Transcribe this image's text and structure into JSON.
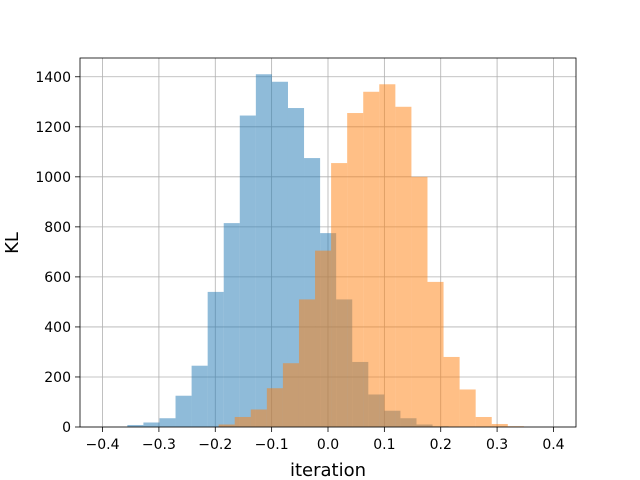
{
  "chart_data": {
    "type": "histogram",
    "title": "",
    "xlabel": "iteration",
    "ylabel": "KL",
    "xlim": [
      -0.44,
      0.44
    ],
    "ylim": [
      0,
      1475
    ],
    "grid": true,
    "x_ticks": [
      -0.4,
      -0.3,
      -0.2,
      -0.1,
      0.0,
      0.1,
      0.2,
      0.3,
      0.4
    ],
    "x_tick_labels": [
      "−0.4",
      "−0.3",
      "−0.2",
      "−0.1",
      "0.0",
      "0.1",
      "0.2",
      "0.3",
      "0.4"
    ],
    "y_ticks": [
      0,
      200,
      400,
      600,
      800,
      1000,
      1200,
      1400
    ],
    "y_tick_labels": [
      "0",
      "200",
      "400",
      "600",
      "800",
      "1000",
      "1200",
      "1400"
    ],
    "series": [
      {
        "color": "#1f77b4",
        "opacity": 0.5,
        "bin_edges": [
          -0.356,
          -0.3275,
          -0.299,
          -0.2705,
          -0.242,
          -0.2135,
          -0.185,
          -0.1565,
          -0.128,
          -0.0995,
          -0.071,
          -0.0425,
          -0.014,
          0.0145,
          0.043,
          0.0715,
          0.1,
          0.1285,
          0.157,
          0.1855,
          0.214
        ],
        "counts": [
          8,
          18,
          35,
          125,
          245,
          540,
          815,
          1245,
          1410,
          1380,
          1275,
          1075,
          775,
          510,
          260,
          130,
          65,
          35,
          10,
          3
        ]
      },
      {
        "color": "#ff7f0e",
        "opacity": 0.5,
        "bin_edges": [
          -0.194,
          -0.1655,
          -0.137,
          -0.1085,
          -0.08,
          -0.0515,
          -0.023,
          0.0055,
          0.034,
          0.0625,
          0.091,
          0.1195,
          0.148,
          0.1765,
          0.205,
          0.2335,
          0.262,
          0.2905,
          0.319,
          0.3475
        ],
        "counts": [
          10,
          40,
          70,
          155,
          255,
          510,
          705,
          1055,
          1255,
          1340,
          1370,
          1280,
          1000,
          580,
          280,
          150,
          40,
          12,
          3
        ]
      }
    ]
  }
}
